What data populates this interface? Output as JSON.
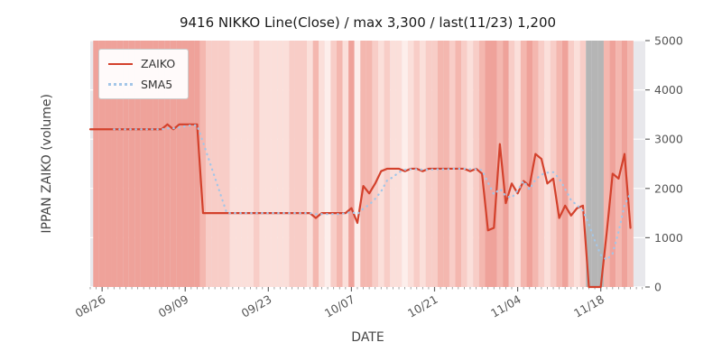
{
  "chart_data": {
    "type": "line",
    "title": "9416 NIKKO Line(Close) / max 3,300 / last(11/23) 1,200",
    "xlabel": "DATE",
    "ylabel": "IPPAN ZAIKO (volume)",
    "ylim": [
      0,
      5000
    ],
    "yticks": [
      0,
      1000,
      2000,
      3000,
      4000,
      5000
    ],
    "xticks": [
      "08/26",
      "09/09",
      "09/23",
      "10/07",
      "10/21",
      "11/04",
      "11/18"
    ],
    "legend_position": "upper left",
    "grid": true,
    "colors": {
      "plot_bg": "#e8e8ec",
      "grid": "#ffffff",
      "tick_label": "#555555",
      "zero_band": "#b5b5b5"
    },
    "dates": [
      "08/24",
      "08/25",
      "08/26",
      "08/27",
      "08/28",
      "08/29",
      "08/30",
      "08/31",
      "09/01",
      "09/02",
      "09/03",
      "09/04",
      "09/05",
      "09/06",
      "09/07",
      "09/08",
      "09/09",
      "09/10",
      "09/11",
      "09/12",
      "09/13",
      "09/14",
      "09/15",
      "09/16",
      "09/17",
      "09/18",
      "09/19",
      "09/20",
      "09/21",
      "09/22",
      "09/23",
      "09/24",
      "09/25",
      "09/26",
      "09/27",
      "09/28",
      "09/29",
      "09/30",
      "10/01",
      "10/02",
      "10/03",
      "10/04",
      "10/05",
      "10/06",
      "10/07",
      "10/08",
      "10/09",
      "10/10",
      "10/11",
      "10/12",
      "10/13",
      "10/14",
      "10/15",
      "10/16",
      "10/17",
      "10/18",
      "10/19",
      "10/20",
      "10/21",
      "10/22",
      "10/23",
      "10/24",
      "10/25",
      "10/26",
      "10/27",
      "10/28",
      "10/29",
      "10/30",
      "10/31",
      "11/01",
      "11/02",
      "11/03",
      "11/04",
      "11/05",
      "11/06",
      "11/07",
      "11/08",
      "11/09",
      "11/10",
      "11/11",
      "11/12",
      "11/13",
      "11/14",
      "11/15",
      "11/16",
      "11/17",
      "11/18",
      "11/19",
      "11/20",
      "11/21",
      "11/22",
      "11/23"
    ],
    "series": [
      {
        "name": "ZAIKO",
        "color": "#d3412c",
        "style": "solid",
        "values": [
          3200,
          3200,
          3200,
          3200,
          3200,
          3200,
          3200,
          3200,
          3200,
          3200,
          3200,
          3200,
          3200,
          3300,
          3200,
          3300,
          3300,
          3300,
          3300,
          1500,
          1500,
          1500,
          1500,
          1500,
          1500,
          1500,
          1500,
          1500,
          1500,
          1500,
          1500,
          1500,
          1500,
          1500,
          1500,
          1500,
          1500,
          1500,
          1400,
          1500,
          1500,
          1500,
          1500,
          1500,
          1600,
          1300,
          2050,
          1900,
          2100,
          2350,
          2400,
          2400,
          2400,
          2350,
          2400,
          2400,
          2350,
          2400,
          2400,
          2400,
          2400,
          2400,
          2400,
          2400,
          2350,
          2400,
          2300,
          1150,
          1200,
          2900,
          1700,
          2100,
          1900,
          2150,
          2050,
          2700,
          2600,
          2100,
          2200,
          1400,
          1650,
          1450,
          1600,
          1650,
          0,
          0,
          0,
          1100,
          2300,
          2200,
          2700,
          1200
        ]
      },
      {
        "name": "SMA5",
        "color": "#a3c6e8",
        "style": "dotted",
        "derived_from": "ZAIKO",
        "window": 5
      }
    ],
    "band_colors": [
      null,
      "#efa29a",
      "#efa29a",
      "#efa29a",
      "#efa29a",
      "#efa29a",
      "#efa29a",
      "#efa29a",
      "#efa29a",
      "#efa29a",
      "#efa29a",
      "#efa29a",
      "#efa29a",
      "#efa29a",
      "#efa29a",
      "#efa29a",
      "#efa29a",
      "#efa29a",
      "#efa29a",
      "#f4b7af",
      "#f8cdc7",
      "#f8cdc7",
      "#f8cdc7",
      "#f8cdc7",
      "#fbdfda",
      "#fbdfda",
      "#fbdfda",
      "#fbdfda",
      "#f8cdc7",
      "#fbdfda",
      "#fbdfda",
      "#fbdfda",
      "#fbdfda",
      "#fbdfda",
      "#f8cdc7",
      "#f8cdc7",
      "#f8cdc7",
      "#fbdfda",
      "#f4b7af",
      "#fbdfda",
      "#fdeeeb",
      "#f8cdc7",
      "#f4b7af",
      "#fbdfda",
      "#efa29a",
      "#fdeeeb",
      "#f4b7af",
      "#f4b7af",
      "#f8cdc7",
      "#fbdfda",
      "#f8cdc7",
      "#fbdfda",
      "#fbdfda",
      "#fdeeeb",
      "#fbdfda",
      "#f8cdc7",
      "#fbdfda",
      "#f8cdc7",
      "#f8cdc7",
      "#f4b7af",
      "#f4b7af",
      "#f8cdc7",
      "#f4b7af",
      "#f8cdc7",
      "#fbdfda",
      "#f8cdc7",
      "#f4b7af",
      "#efa29a",
      "#efa29a",
      "#f4b7af",
      "#efa29a",
      "#f8cdc7",
      "#fbdfda",
      "#f4b7af",
      "#efa29a",
      "#f4b7af",
      "#f8cdc7",
      "#fbdfda",
      "#f8cdc7",
      "#f4b7af",
      "#efa29a",
      "#f8cdc7",
      "#fbdfda",
      "#f8cdc7",
      "#b5b5b5",
      "#b5b5b5",
      "#b5b5b5",
      "#f4b7af",
      "#efa29a",
      "#f4b7af",
      "#efa29a",
      "#f4b7af"
    ]
  }
}
